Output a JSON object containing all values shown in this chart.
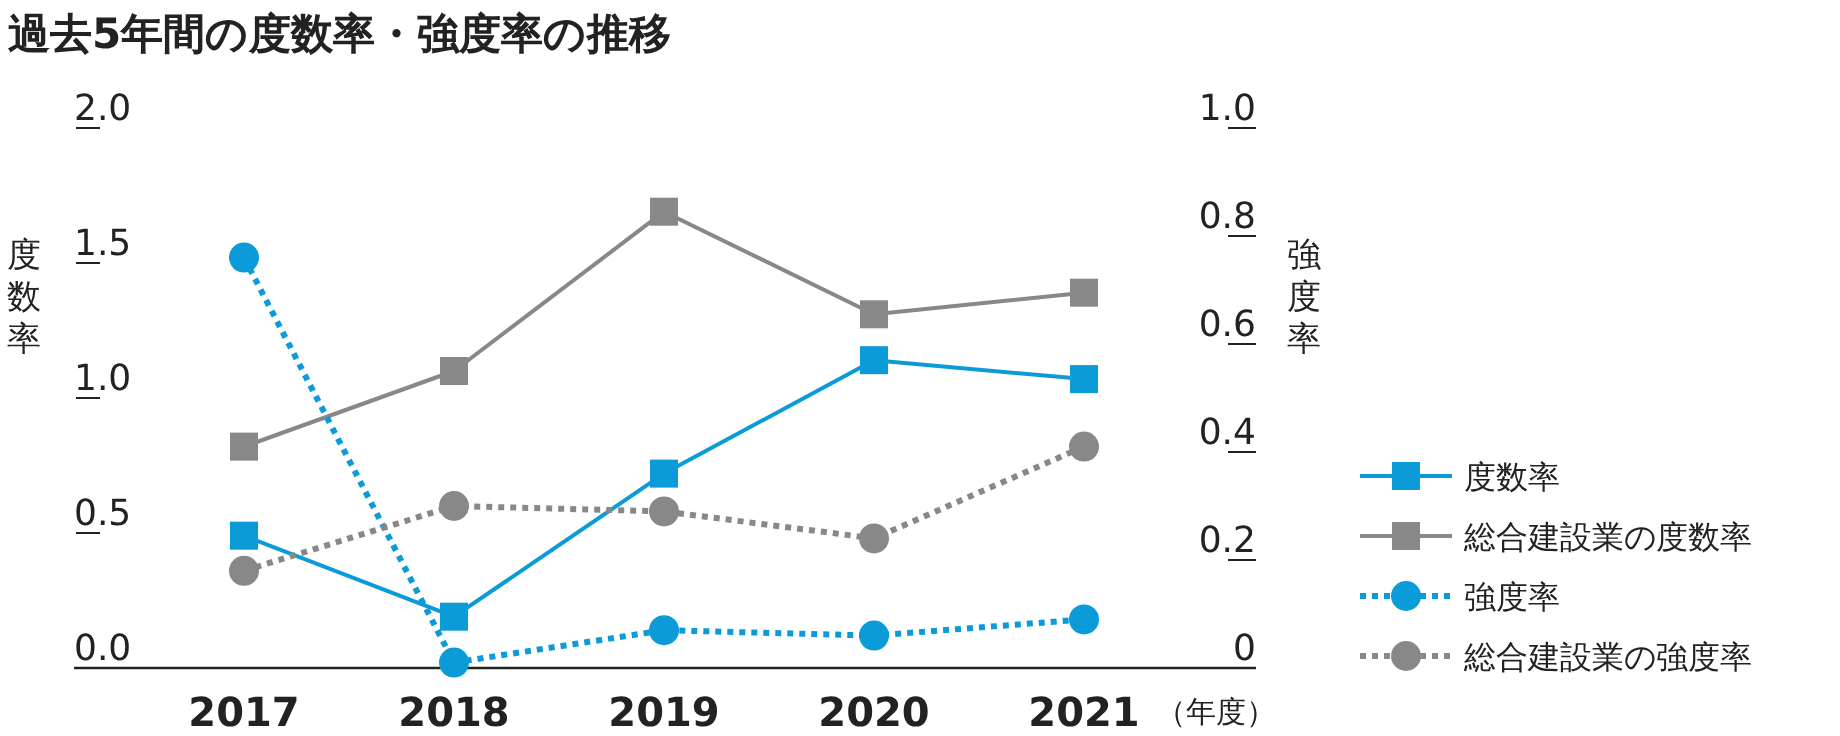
{
  "chart_data": {
    "type": "line",
    "title": "過去5年間の度数率・強度率の推移",
    "xlabel": "（年度）",
    "ylabel": "度数率",
    "y2label": "強度率",
    "categories": [
      "2017",
      "2018",
      "2019",
      "2020",
      "2021"
    ],
    "ylim": [
      0,
      2
    ],
    "yticks": [
      {
        "value": 0,
        "label": "0.0"
      },
      0.5,
      {
        "value": 1,
        "label": "1.0"
      },
      1.5,
      {
        "value": 2,
        "label": "2.0"
      }
    ],
    "y2lim": [
      0,
      1
    ],
    "y2ticks": [
      0,
      0.2,
      0.4,
      0.6,
      0.8,
      {
        "value": 1,
        "label": "1.0"
      }
    ],
    "grid": false,
    "legend": "right",
    "series": [
      {
        "name": "度数率",
        "color": "#0a9bd8",
        "marker": "square",
        "line_style": "solid",
        "values": [
          0.49,
          0.19,
          0.72,
          1.14,
          1.07
        ]
      },
      {
        "name": "総合建設業の度数率",
        "color": "#888888",
        "marker": "square",
        "line_style": "solid",
        "values": [
          0.82,
          1.1,
          1.69,
          1.31,
          1.39
        ]
      },
      {
        "name": "強度率",
        "color": "#0a9bd8",
        "marker": "circle",
        "line_style": "dotted",
        "axis": "y2",
        "values": [
          0.76,
          0.01,
          0.07,
          0.06,
          0.09
        ]
      },
      {
        "name": "総合建設業の強度率",
        "color": "#888888",
        "marker": "circle",
        "line_style": "dotted",
        "axis": "y2",
        "values": [
          0.18,
          0.3,
          0.29,
          0.24,
          0.41
        ]
      }
    ]
  }
}
